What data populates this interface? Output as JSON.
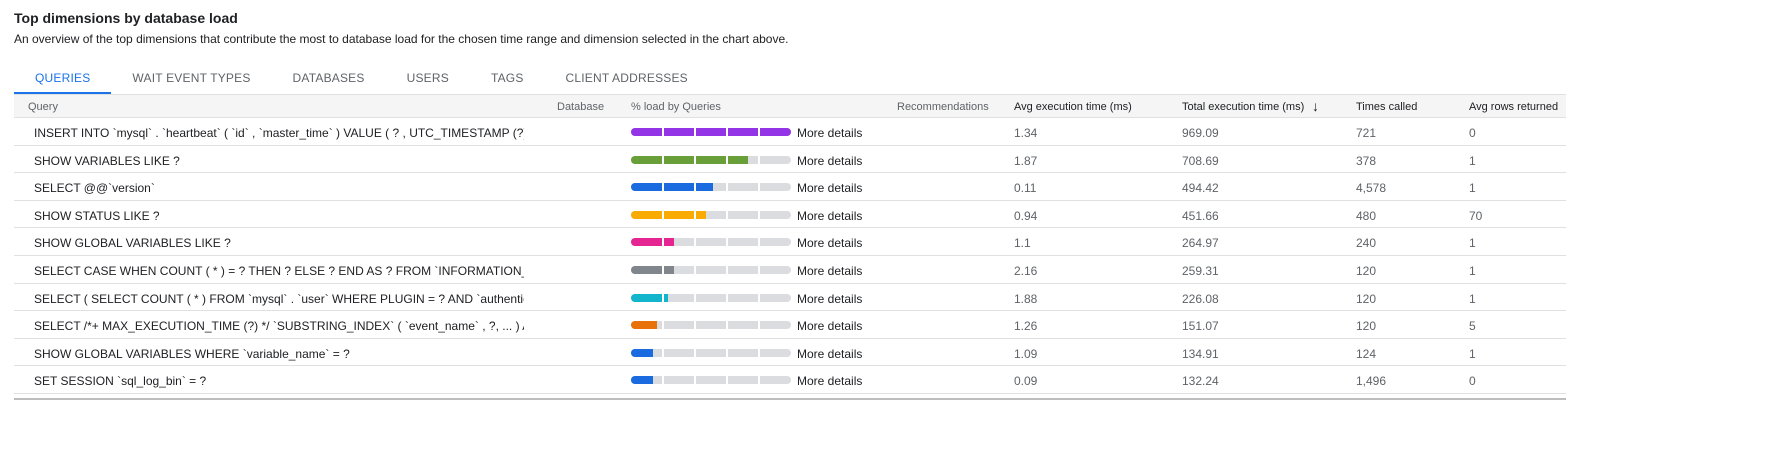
{
  "title": "Top dimensions by database load",
  "subtitle": "An overview of the top dimensions that contribute the most to database load for the chosen time range and dimension selected in the chart above.",
  "tabs": [
    {
      "label": "QUERIES",
      "active": true
    },
    {
      "label": "WAIT EVENT TYPES"
    },
    {
      "label": "DATABASES"
    },
    {
      "label": "USERS"
    },
    {
      "label": "TAGS"
    },
    {
      "label": "CLIENT ADDRESSES"
    }
  ],
  "columns": {
    "query": "Query",
    "database": "Database",
    "load": "% load by Queries",
    "recommendations": "Recommendations",
    "avg": "Avg execution time (ms)",
    "total": "Total execution time (ms)",
    "sort_icon": "arrow-down-icon",
    "times": "Times called",
    "rows": "Avg rows returned"
  },
  "more_label": "More details",
  "rows": [
    {
      "query": "INSERT INTO `mysql` . `heartbeat` ( `id` , `master_time` ) VALUE ( ? , UTC_TIMESTAMP (?) ) O...",
      "database": "",
      "load": 1.0,
      "color": "#9334e6",
      "avg": "1.34",
      "total": "969.09",
      "times": "721",
      "rows": "0"
    },
    {
      "query": "SHOW VARIABLES LIKE ?",
      "database": "",
      "load": 0.73,
      "color": "#689f38",
      "avg": "1.87",
      "total": "708.69",
      "times": "378",
      "rows": "1"
    },
    {
      "query": "SELECT @@`version`",
      "database": "",
      "load": 0.51,
      "color": "#1a6ae0",
      "avg": "0.11",
      "total": "494.42",
      "times": "4,578",
      "rows": "1"
    },
    {
      "query": "SHOW STATUS LIKE ?",
      "database": "",
      "load": 0.47,
      "color": "#f9ab00",
      "avg": "0.94",
      "total": "451.66",
      "times": "480",
      "rows": "70"
    },
    {
      "query": "SHOW GLOBAL VARIABLES LIKE ?",
      "database": "",
      "load": 0.27,
      "color": "#e52592",
      "avg": "1.1",
      "total": "264.97",
      "times": "240",
      "rows": "1"
    },
    {
      "query": "SELECT CASE WHEN COUNT ( * ) = ? THEN ? ELSE ? END AS ? FROM `INFORMATION_SCHEM...",
      "database": "",
      "load": 0.27,
      "color": "#80868b",
      "avg": "2.16",
      "total": "259.31",
      "times": "120",
      "rows": "1"
    },
    {
      "query": "SELECT ( SELECT COUNT ( * ) FROM `mysql` . `user` WHERE PLUGIN = ? AND `authentication...",
      "database": "",
      "load": 0.23,
      "color": "#12b5cb",
      "avg": "1.88",
      "total": "226.08",
      "times": "120",
      "rows": "1"
    },
    {
      "query": "SELECT /*+ MAX_EXECUTION_TIME (?) */ `SUBSTRING_INDEX` ( `event_name` , ?, ... ) AS `co...",
      "database": "",
      "load": 0.16,
      "color": "#e8710a",
      "avg": "1.26",
      "total": "151.07",
      "times": "120",
      "rows": "5"
    },
    {
      "query": "SHOW GLOBAL VARIABLES WHERE `variable_name` = ?",
      "database": "",
      "load": 0.14,
      "color": "#1a6ae0",
      "avg": "1.09",
      "total": "134.91",
      "times": "124",
      "rows": "1"
    },
    {
      "query": "SET SESSION `sql_log_bin` = ?",
      "database": "",
      "load": 0.14,
      "color": "#1a6ae0",
      "avg": "0.09",
      "total": "132.24",
      "times": "1,496",
      "rows": "0"
    }
  ]
}
